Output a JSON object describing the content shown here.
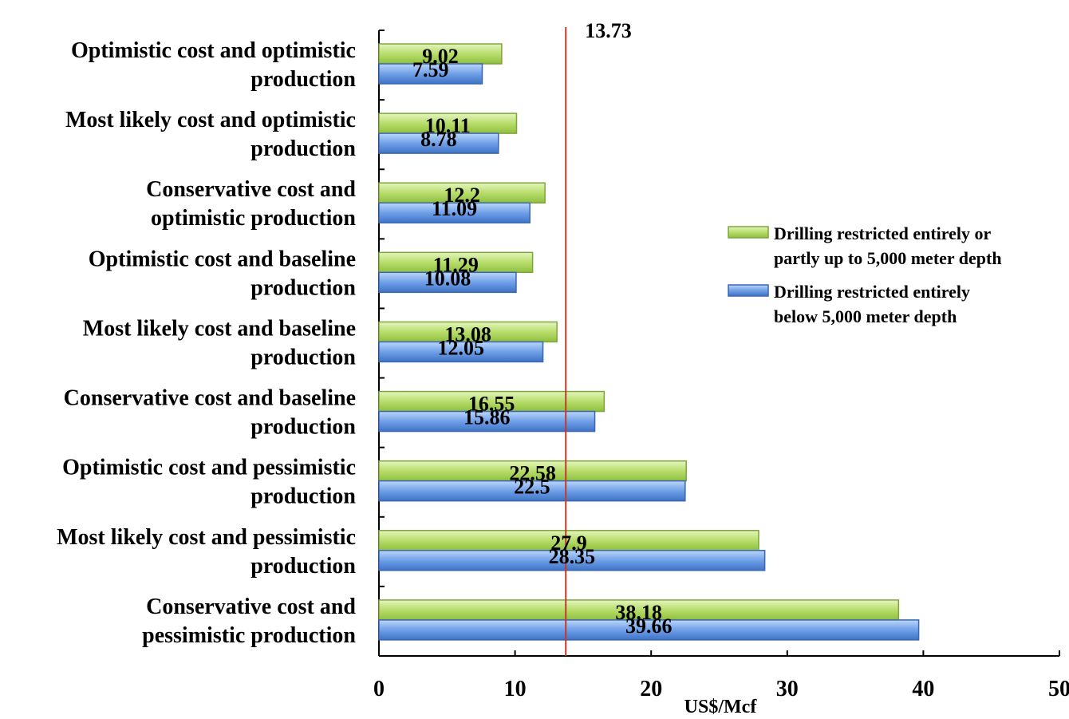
{
  "chart_data": {
    "type": "bar",
    "orientation": "horizontal",
    "categories": [
      [
        "Optimistic cost and optimistic",
        "production"
      ],
      [
        "Most likely cost and optimistic",
        "production"
      ],
      [
        "Conservative cost and",
        "optimistic production"
      ],
      [
        "Optimistic cost and baseline",
        "production"
      ],
      [
        "Most likely cost and baseline",
        "production"
      ],
      [
        "Conservative cost and baseline",
        "production"
      ],
      [
        "Optimistic cost and pessimistic",
        "production"
      ],
      [
        "Most likely cost and pessimistic",
        "production"
      ],
      [
        "Conservative cost and",
        "pessimistic production"
      ]
    ],
    "series": [
      {
        "name": "Drilling restricted entirely or partly up to 5,000 meter depth",
        "legend_lines": [
          "Drilling restricted entirely or",
          "partly up to 5,000 meter depth"
        ],
        "color": "#b8dd6b",
        "stroke": "#7ea53a",
        "values": [
          9.02,
          10.11,
          12.2,
          11.29,
          13.08,
          16.55,
          22.58,
          27.9,
          38.18
        ],
        "labels": [
          "9.02",
          "10.11",
          "12.2",
          "11.29",
          "13.08",
          "16.55",
          "22.58",
          "27.9",
          "38.18"
        ]
      },
      {
        "name": "Drilling restricted entirely below 5,000 meter depth",
        "legend_lines": [
          "Drilling restricted entirely",
          "below 5,000 meter depth"
        ],
        "color": "#6fa0e8",
        "stroke": "#3a68b0",
        "values": [
          7.59,
          8.78,
          11.09,
          10.08,
          12.05,
          15.86,
          22.5,
          28.35,
          39.66
        ],
        "labels": [
          "7.59",
          "8.78",
          "11.09",
          "10.08",
          "12.05",
          "15.86",
          "22.5",
          "28.35",
          "39.66"
        ]
      }
    ],
    "reference_line": {
      "value": 13.73,
      "label": "13.73",
      "color": "#c0392b"
    },
    "xlabel": "US$/Mcf",
    "xlim": [
      0,
      50
    ],
    "xticks": [
      0,
      10,
      20,
      30,
      40,
      50
    ],
    "xtick_labels": [
      "0",
      "10",
      "20",
      "30",
      "40",
      "50"
    ],
    "grid": false,
    "legend_position": "right"
  }
}
